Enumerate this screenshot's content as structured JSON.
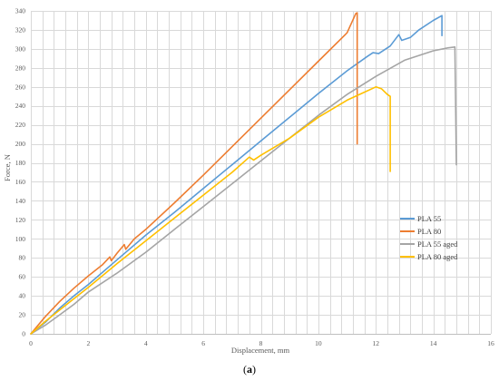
{
  "caption": {
    "open": "(",
    "letter": "a",
    "close": ")"
  },
  "chart_data": {
    "type": "line",
    "xlabel": "Displacement, mm",
    "ylabel": "Force, N",
    "xlim": [
      0,
      16
    ],
    "ylim": [
      0,
      340
    ],
    "xticks": [
      0,
      2,
      4,
      6,
      8,
      10,
      12,
      14,
      16
    ],
    "yticks": [
      0,
      20,
      40,
      60,
      80,
      100,
      120,
      140,
      160,
      180,
      200,
      220,
      240,
      260,
      280,
      300,
      320,
      340
    ],
    "grid": "vertical and horizontal",
    "legend_position": "right",
    "series": [
      {
        "name": "PLA 55",
        "color": "#5B9BD5",
        "points": [
          [
            0,
            0
          ],
          [
            0.5,
            12
          ],
          [
            1,
            27
          ],
          [
            1.5,
            40
          ],
          [
            2,
            52
          ],
          [
            3,
            78
          ],
          [
            4,
            104
          ],
          [
            5,
            128
          ],
          [
            6,
            153
          ],
          [
            7,
            178
          ],
          [
            8,
            203
          ],
          [
            9,
            228
          ],
          [
            10,
            253
          ],
          [
            11,
            277
          ],
          [
            11.7,
            292
          ],
          [
            11.9,
            296
          ],
          [
            12.1,
            295
          ],
          [
            12.5,
            303
          ],
          [
            12.8,
            315
          ],
          [
            12.9,
            309
          ],
          [
            13.2,
            312
          ],
          [
            13.5,
            320
          ],
          [
            14,
            330
          ],
          [
            14.3,
            335
          ],
          [
            14.3,
            314
          ]
        ]
      },
      {
        "name": "PLA 80",
        "color": "#ED7D31",
        "points": [
          [
            0,
            0
          ],
          [
            0.5,
            18
          ],
          [
            1,
            34
          ],
          [
            1.5,
            48
          ],
          [
            2,
            61
          ],
          [
            2.5,
            73
          ],
          [
            2.75,
            81
          ],
          [
            2.8,
            77
          ],
          [
            3,
            85
          ],
          [
            3.25,
            94
          ],
          [
            3.3,
            89
          ],
          [
            3.6,
            100
          ],
          [
            4,
            110
          ],
          [
            5,
            138
          ],
          [
            6,
            167
          ],
          [
            7,
            197
          ],
          [
            8,
            227
          ],
          [
            9,
            257
          ],
          [
            10,
            287
          ],
          [
            11,
            317
          ],
          [
            11.3,
            337
          ],
          [
            11.35,
            338
          ],
          [
            11.35,
            200
          ]
        ]
      },
      {
        "name": "PLA 55 aged",
        "color": "#A5A5A5",
        "points": [
          [
            0,
            0
          ],
          [
            0.5,
            9
          ],
          [
            1,
            20
          ],
          [
            1.5,
            31
          ],
          [
            2,
            44
          ],
          [
            3,
            64
          ],
          [
            4,
            86
          ],
          [
            5,
            110
          ],
          [
            6,
            134
          ],
          [
            7,
            158
          ],
          [
            8,
            182
          ],
          [
            9,
            206
          ],
          [
            10,
            230
          ],
          [
            11,
            252
          ],
          [
            12,
            271
          ],
          [
            13,
            288
          ],
          [
            14,
            298
          ],
          [
            14.5,
            301
          ],
          [
            14.75,
            302
          ],
          [
            14.8,
            178
          ]
        ]
      },
      {
        "name": "PLA 80 aged",
        "color": "#FFC000",
        "points": [
          [
            0,
            0
          ],
          [
            0.5,
            13
          ],
          [
            1,
            25
          ],
          [
            1.5,
            37
          ],
          [
            2,
            49
          ],
          [
            3,
            74
          ],
          [
            4,
            98
          ],
          [
            5,
            122
          ],
          [
            6,
            146
          ],
          [
            7,
            170
          ],
          [
            7.6,
            186
          ],
          [
            7.75,
            183
          ],
          [
            8,
            188
          ],
          [
            9,
            206
          ],
          [
            10,
            228
          ],
          [
            11,
            246
          ],
          [
            11.5,
            253
          ],
          [
            12,
            260
          ],
          [
            12.2,
            258
          ],
          [
            12.4,
            252
          ],
          [
            12.5,
            250
          ],
          [
            12.5,
            171
          ]
        ]
      }
    ]
  }
}
